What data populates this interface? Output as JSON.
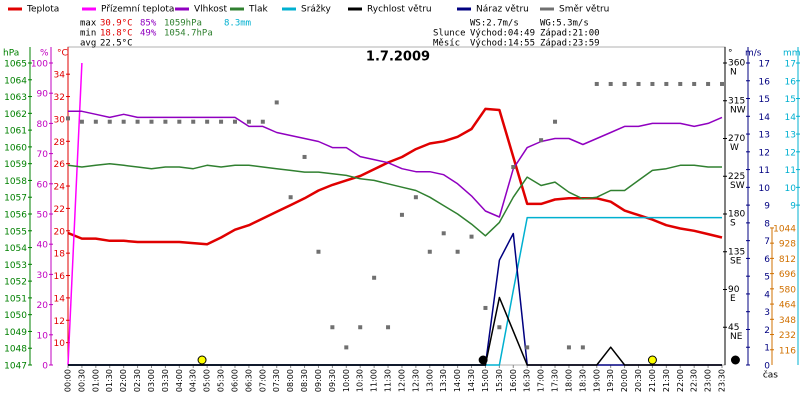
{
  "chart_data": {
    "type": "line",
    "title": "1.7.2009",
    "x_label": "čas",
    "categories": [
      "00:00",
      "00:30",
      "01:00",
      "01:30",
      "02:00",
      "02:30",
      "03:00",
      "03:30",
      "04:00",
      "04:30",
      "05:00",
      "05:30",
      "06:00",
      "06:30",
      "07:00",
      "07:30",
      "08:00",
      "08:30",
      "09:00",
      "09:30",
      "10:00",
      "10:30",
      "11:00",
      "11:30",
      "12:00",
      "12:30",
      "13:00",
      "13:30",
      "14:00",
      "14:30",
      "15:00",
      "15:30",
      "16:00",
      "16:30",
      "17:00",
      "17:30",
      "18:00",
      "18:30",
      "19:00",
      "19:30",
      "20:00",
      "20:30",
      "21:00",
      "21:30",
      "22:00",
      "22:30",
      "23:00",
      "23:30"
    ],
    "axes": {
      "hpa": {
        "unit": "hPa",
        "color": "#008000",
        "ylim": [
          1047,
          1065
        ],
        "ticks": [
          1047,
          1048,
          1049,
          1050,
          1051,
          1052,
          1053,
          1054,
          1055,
          1056,
          1057,
          1058,
          1059,
          1060,
          1061,
          1062,
          1063,
          1064,
          1065
        ]
      },
      "pct": {
        "unit": "%",
        "color": "#c000c0",
        "ylim": [
          0,
          100
        ],
        "ticks": [
          0,
          10,
          20,
          30,
          40,
          50,
          60,
          70,
          80,
          90,
          100
        ]
      },
      "temp": {
        "unit": "°C",
        "color": "#e00000",
        "ylim": [
          8,
          35
        ],
        "ticks": [
          10,
          12,
          14,
          16,
          18,
          20,
          22,
          24,
          26,
          28,
          30,
          32,
          34
        ]
      },
      "dir": {
        "unit": "°",
        "color": "#000000",
        "ylim": [
          0,
          360
        ],
        "ticks": [
          360,
          315,
          270,
          225,
          180,
          135,
          90,
          45
        ],
        "tick_names": [
          "N",
          "NW",
          "W",
          "SW",
          "S",
          "SE",
          "E",
          "NE"
        ]
      },
      "ms": {
        "unit": "m/s",
        "color": "#000080",
        "ylim": [
          0,
          17
        ],
        "ticks": [
          0,
          1,
          2,
          3,
          4,
          5,
          6,
          7,
          8,
          9,
          10,
          11,
          12,
          13,
          14,
          15,
          16,
          17
        ]
      },
      "rad": {
        "color": "#d07000",
        "ylim": [
          0,
          2300
        ],
        "ticks": [
          116,
          232,
          348,
          464,
          580,
          696,
          812,
          928,
          1044
        ]
      },
      "mm": {
        "unit": "mm",
        "color": "#00b0d0",
        "ylim": [
          0,
          17
        ],
        "ticks": [
          9,
          10,
          11,
          12,
          13,
          14,
          15,
          16,
          17
        ]
      }
    },
    "series": [
      {
        "name": "Teplota",
        "color": "#e00000",
        "axis": "temp",
        "style": "line",
        "values": [
          19.8,
          19.3,
          19.3,
          19.1,
          19.1,
          19.0,
          19.0,
          19.0,
          19.0,
          18.9,
          18.8,
          19.4,
          20.1,
          20.5,
          21.1,
          21.7,
          22.3,
          22.9,
          23.6,
          24.1,
          24.5,
          24.9,
          25.5,
          26.1,
          26.6,
          27.3,
          27.8,
          28.0,
          28.4,
          29.1,
          30.9,
          30.8,
          26.6,
          22.4,
          22.4,
          22.8,
          22.9,
          22.9,
          22.9,
          22.6,
          21.8,
          21.4,
          21.0,
          20.5,
          20.2,
          20.0,
          19.7,
          19.4
        ]
      },
      {
        "name": "Přízemní teplota",
        "color": "#ff00ff",
        "axis": "temp",
        "style": "line",
        "values": [
          8,
          35,
          null,
          null,
          null,
          null,
          null,
          null,
          null,
          null,
          null,
          null,
          null,
          null,
          null,
          null,
          null,
          null,
          null,
          null,
          null,
          null,
          null,
          null,
          null,
          null,
          null,
          null,
          null,
          null,
          null,
          null,
          null,
          null,
          null,
          null,
          null,
          null,
          null,
          null,
          null,
          null,
          null,
          null,
          null,
          null,
          null,
          null
        ]
      },
      {
        "name": "Vlhkost",
        "color": "#9000c0",
        "axis": "pct",
        "style": "line",
        "values": [
          84,
          84,
          83,
          82,
          83,
          82,
          82,
          82,
          82,
          82,
          82,
          82,
          82,
          79,
          79,
          77,
          76,
          75,
          74,
          72,
          72,
          69,
          68,
          67,
          65,
          64,
          64,
          63,
          60,
          56,
          51,
          49,
          65,
          72,
          74,
          75,
          75,
          73,
          75,
          77,
          79,
          79,
          80,
          80,
          80,
          79,
          80,
          82
        ]
      },
      {
        "name": "Tlak",
        "color": "#308030",
        "axis": "hpa",
        "style": "line",
        "values": [
          1058.9,
          1058.8,
          1058.9,
          1059.0,
          1058.9,
          1058.8,
          1058.7,
          1058.8,
          1058.8,
          1058.7,
          1058.9,
          1058.8,
          1058.9,
          1058.9,
          1058.8,
          1058.7,
          1058.6,
          1058.5,
          1058.5,
          1058.4,
          1058.3,
          1058.1,
          1058.0,
          1057.8,
          1057.6,
          1057.4,
          1057.0,
          1056.5,
          1056.0,
          1055.4,
          1054.7,
          1055.5,
          1057.0,
          1058.2,
          1057.7,
          1057.9,
          1057.3,
          1056.9,
          1057.0,
          1057.4,
          1057.4,
          1058.0,
          1058.6,
          1058.7,
          1058.9,
          1058.9,
          1058.8,
          1058.8
        ]
      },
      {
        "name": "Srážky",
        "color": "#00b0d0",
        "axis": "mm",
        "style": "line",
        "values": [
          0,
          0,
          0,
          0,
          0,
          0,
          0,
          0,
          0,
          0,
          0,
          0,
          0,
          0,
          0,
          0,
          0,
          0,
          0,
          0,
          0,
          0,
          0,
          0,
          0,
          0,
          0,
          0,
          0,
          0,
          0,
          0,
          4.2,
          8.3,
          8.3,
          8.3,
          8.3,
          8.3,
          8.3,
          8.3,
          8.3,
          8.3,
          8.3,
          8.3,
          8.3,
          8.3,
          8.3,
          8.3
        ]
      },
      {
        "name": "Náraz větru",
        "color": "#000080",
        "axis": "ms",
        "style": "line",
        "values": [
          0,
          0,
          0,
          0,
          0,
          0,
          0,
          0,
          0,
          0,
          0,
          0,
          0,
          0,
          0,
          0,
          0,
          0,
          0,
          0,
          0,
          0,
          0,
          0,
          0,
          0,
          0,
          0,
          0,
          0,
          0,
          5.9,
          7.4,
          0,
          0,
          0,
          0,
          0,
          0,
          0,
          0,
          0,
          0,
          0,
          0,
          0,
          0,
          0
        ]
      },
      {
        "name": "Rychlost větru",
        "color": "#000000",
        "axis": "ms",
        "style": "line",
        "values": [
          0,
          0,
          0,
          0,
          0,
          0,
          0,
          0,
          0,
          0,
          0,
          0,
          0,
          0,
          0,
          0,
          0,
          0,
          0,
          0,
          0,
          0,
          0,
          0,
          0,
          0,
          0,
          0,
          0,
          0,
          0,
          3.8,
          1.9,
          0,
          0,
          0,
          0,
          0,
          0,
          1.0,
          0,
          0,
          0,
          0,
          0,
          0,
          0,
          0
        ]
      },
      {
        "name": "Směr větru",
        "color": "#707070",
        "axis": "dir",
        "style": "points",
        "values": [
          294,
          290,
          290,
          290,
          290,
          290,
          290,
          290,
          290,
          290,
          290,
          290,
          290,
          290,
          290,
          313,
          200,
          248,
          135,
          45,
          21,
          45,
          104,
          45,
          179,
          200,
          135,
          157,
          135,
          153,
          68,
          45,
          236,
          21,
          268,
          290,
          21,
          21,
          335,
          335,
          335,
          335,
          335,
          335,
          335,
          335,
          335,
          335
        ]
      }
    ],
    "legend_order": [
      0,
      1,
      2,
      3,
      4,
      6,
      5,
      7
    ]
  },
  "stats": {
    "max": {
      "label": "max",
      "temp": "30.9°C",
      "humidity": "85%",
      "pressure": "1059hPa",
      "rain": "8.3mm"
    },
    "min": {
      "label": "min",
      "temp": "18.8°C",
      "humidity": "49%",
      "pressure": "1054.7hPa"
    },
    "avg": {
      "label": "avg",
      "temp": "22.5°C"
    },
    "wind": {
      "ws": "WS:2.7m/s",
      "wg": "WG:5.3m/s"
    },
    "sun": {
      "label": "Slunce",
      "rise": "Východ:04:49",
      "set": "Západ:21:00"
    },
    "moon": {
      "label": "Měsíc",
      "rise": "Východ:14:55",
      "set": "Západ:23:59"
    }
  }
}
